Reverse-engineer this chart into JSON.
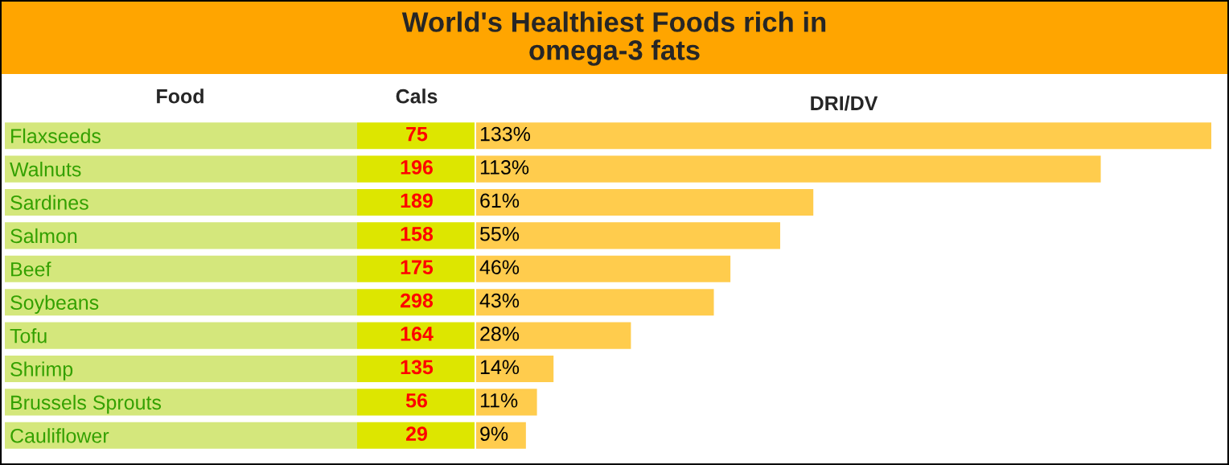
{
  "chart_data": {
    "type": "bar",
    "orientation": "horizontal",
    "tick_labels": "y",
    "title": "World's Healthiest Foods rich in\nomega-3 fats",
    "xlabel": "DRI/DV",
    "categories": [
      "Flaxseeds",
      "Walnuts",
      "Sardines",
      "Salmon",
      "Beef",
      "Soybeans",
      "Tofu",
      "Shrimp",
      "Brussels Sprouts",
      "Cauliflower"
    ],
    "values": [
      133,
      113,
      61,
      55,
      46,
      43,
      28,
      14,
      11,
      9
    ],
    "value_labels": [
      "133%",
      "113%",
      "61%",
      "55%",
      "46%",
      "43%",
      "28%",
      "14%",
      "11%",
      "9%"
    ],
    "color": "#ffcc4d",
    "annotations": [
      "Food",
      "Cals",
      "75",
      "196",
      "189",
      "158",
      "175",
      "298",
      "164",
      "135",
      "56",
      "29"
    ],
    "grid": false,
    "legend": false
  }
}
